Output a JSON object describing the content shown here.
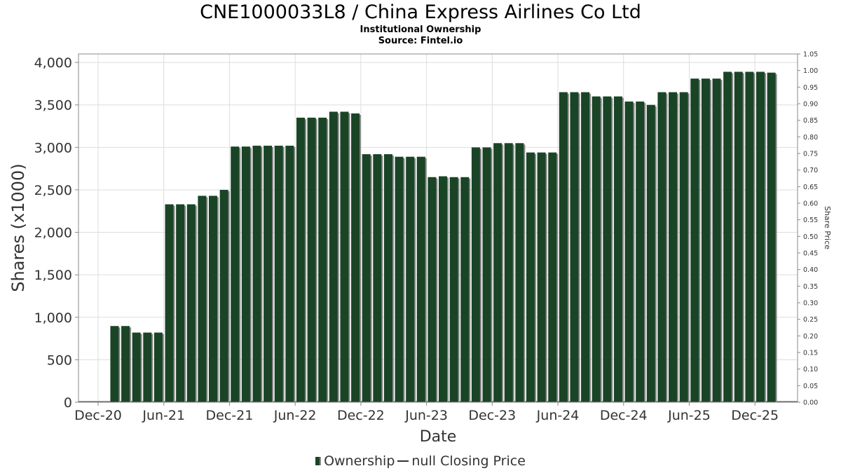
{
  "title": "CNE1000033L8 / China Express Airlines Co Ltd",
  "subtitle": "Institutional Ownership",
  "source": "Source: Fintel.io",
  "legend": {
    "ownership": "Ownership",
    "price": "null Closing Price"
  },
  "colors": {
    "bar": "#1a4426",
    "bar_shadow": "#8a8a8a",
    "grid": "#dddddd",
    "axis": "#888888"
  },
  "chart_data": {
    "type": "bar",
    "xlabel": "Date",
    "ylabel": "Shares (x1000)",
    "y2label": "Share Price",
    "ylim": [
      0,
      4100
    ],
    "y2lim": [
      0,
      1.05
    ],
    "yticks": [
      0,
      500,
      1000,
      1500,
      2000,
      2500,
      3000,
      3500,
      4000
    ],
    "ytick_labels": [
      "0",
      "500",
      "1,000",
      "1,500",
      "2,000",
      "2,500",
      "3,000",
      "3,500",
      "4,000"
    ],
    "y2ticks": [
      "0.00",
      "0.05",
      "0.10",
      "0.15",
      "0.20",
      "0.25",
      "0.30",
      "0.35",
      "0.40",
      "0.45",
      "0.50",
      "0.55",
      "0.60",
      "0.65",
      "0.70",
      "0.75",
      "0.80",
      "0.85",
      "0.90",
      "0.95",
      "1.00",
      "1.05"
    ],
    "xticks": [
      "Dec-20",
      "Jun-21",
      "Dec-21",
      "Jun-22",
      "Dec-22",
      "Jun-23",
      "Dec-23",
      "Jun-24",
      "Dec-24",
      "Jun-25",
      "Dec-25"
    ],
    "xtick_months": [
      0,
      6,
      12,
      18,
      24,
      30,
      36,
      42,
      48,
      54,
      60
    ],
    "x_start": "2020-12",
    "grid": true,
    "legend_position": "bottom",
    "months": [
      1.5,
      2.5,
      3.5,
      4.5,
      5.5,
      6.5,
      7.5,
      8.5,
      9.5,
      10.5,
      11.5,
      12.5,
      13.5,
      14.5,
      15.5,
      16.5,
      17.5,
      18.5,
      19.5,
      20.5,
      21.5,
      22.5,
      23.5,
      24.5,
      25.5,
      26.5,
      27.5,
      28.5,
      29.5,
      30.5,
      31.5,
      32.5,
      33.5,
      34.5,
      35.5,
      36.5,
      37.5,
      38.5,
      39.5,
      40.5,
      41.5,
      42.5,
      43.5,
      44.5,
      45.5,
      46.5,
      47.5,
      48.5,
      49.5,
      50.5,
      51.5,
      52.5,
      53.5,
      54.5,
      55.5,
      56.5,
      57.5,
      58.5,
      59.5,
      60.5,
      61.5
    ],
    "series": [
      {
        "name": "Ownership",
        "values": [
          897,
          897,
          820,
          820,
          820,
          2330,
          2330,
          2330,
          2430,
          2430,
          2500,
          3010,
          3010,
          3020,
          3020,
          3020,
          3020,
          3350,
          3350,
          3350,
          3420,
          3420,
          3400,
          2920,
          2920,
          2920,
          2890,
          2890,
          2890,
          2650,
          2660,
          2650,
          2650,
          3000,
          3000,
          3050,
          3050,
          3050,
          2940,
          2940,
          2940,
          3650,
          3650,
          3650,
          3600,
          3600,
          3600,
          3540,
          3540,
          3500,
          3650,
          3650,
          3650,
          3810,
          3810,
          3810,
          3890,
          3890,
          3890,
          3890,
          3880
        ]
      }
    ]
  }
}
